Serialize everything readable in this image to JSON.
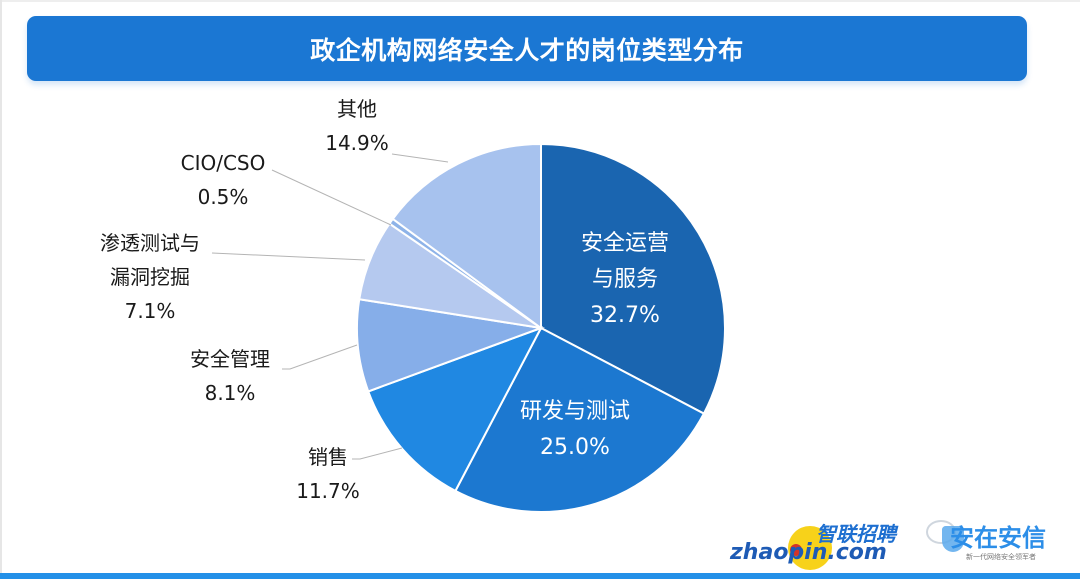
{
  "title": "政企机构网络安全人才的岗位类型分布",
  "chart_data": {
    "type": "pie",
    "title": "政企机构网络安全人才的岗位类型分布",
    "start_angle_deg": 0,
    "direction": "clockwise",
    "legend": "none (data labels with leader lines)",
    "slices": [
      {
        "label": "安全运营与服务",
        "value": 32.7,
        "display": "32.7%",
        "color": "#1a65b0",
        "label_inside": true
      },
      {
        "label": "研发与测试",
        "value": 25.0,
        "display": "25.0%",
        "color": "#1c78d0",
        "label_inside": true
      },
      {
        "label": "销售",
        "value": 11.7,
        "display": "11.7%",
        "color": "#2088e2",
        "label_inside": false
      },
      {
        "label": "安全管理",
        "value": 8.1,
        "display": "8.1%",
        "color": "#86aee9",
        "label_inside": false
      },
      {
        "label": "渗透测试与漏洞挖掘",
        "value": 7.1,
        "display": "7.1%",
        "color": "#b5c9ef",
        "label_inside": false
      },
      {
        "label": "CIO/CSO",
        "value": 0.5,
        "display": "0.5%",
        "color": "#8eb3e8",
        "label_inside": false
      },
      {
        "label": "其他",
        "value": 14.9,
        "display": "14.9%",
        "color": "#a7c2ee",
        "label_inside": false
      }
    ]
  },
  "labels": {
    "s0_l1": "安全运营",
    "s0_l2": "与服务",
    "s0_pct": "32.7%",
    "s1_l1": "研发与测试",
    "s1_pct": "25.0%",
    "s2_l1": "销售",
    "s2_pct": "11.7%",
    "s3_l1": "安全管理",
    "s3_pct": "8.1%",
    "s4_l1": "渗透测试与",
    "s4_l2": "漏洞挖掘",
    "s4_pct": "7.1%",
    "s5_l1": "CIO/CSO",
    "s5_pct": "0.5%",
    "s6_l1": "其他",
    "s6_pct": "14.9%"
  },
  "logos": {
    "zhaopin_cn": "智联招聘",
    "zhaopin_en": "zhaopin.com",
    "anquan_cn": "安在安信",
    "anquan_sub": "新一代网络安全领军者"
  }
}
